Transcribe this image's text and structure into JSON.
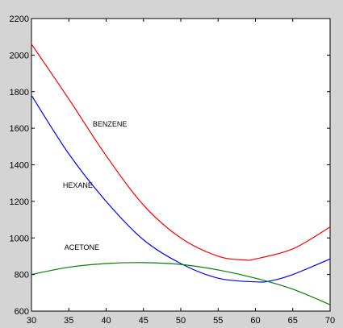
{
  "chart_data": {
    "type": "line",
    "title": "",
    "xlabel": "",
    "ylabel": "",
    "xlim": [
      30,
      70
    ],
    "ylim": [
      600,
      2200
    ],
    "grid": false,
    "x_ticks": [
      30,
      35,
      40,
      45,
      50,
      55,
      60,
      65,
      70
    ],
    "y_ticks": [
      600,
      800,
      1000,
      1200,
      1400,
      1600,
      1800,
      2000,
      2200
    ],
    "colors": {
      "figure_background": "#d4d4d4",
      "plot_background": "#ffffff",
      "axes": "#000000"
    },
    "annotations": [
      {
        "text": "BENZENE",
        "x": 38.2,
        "y": 1610
      },
      {
        "text": "HEXANE",
        "x": 34.2,
        "y": 1275
      },
      {
        "text": "ACETONE",
        "x": 34.4,
        "y": 935
      }
    ],
    "series": [
      {
        "color": "#ff0000",
        "x": [
          30,
          35,
          40,
          45,
          50,
          55,
          58.5,
          60,
          65,
          70
        ],
        "y": [
          2060,
          1760,
          1450,
          1180,
          1000,
          900,
          880,
          885,
          940,
          1060
        ]
      },
      {
        "color": "#0000ff",
        "x": [
          30,
          35,
          40,
          45,
          50,
          55,
          60,
          62,
          65,
          70
        ],
        "y": [
          1780,
          1460,
          1200,
          990,
          860,
          780,
          760,
          765,
          800,
          885
        ]
      },
      {
        "color": "#008000",
        "x": [
          30,
          35,
          40,
          45,
          50,
          55,
          60,
          65,
          70
        ],
        "y": [
          800,
          840,
          860,
          865,
          855,
          825,
          780,
          720,
          635
        ]
      }
    ]
  }
}
